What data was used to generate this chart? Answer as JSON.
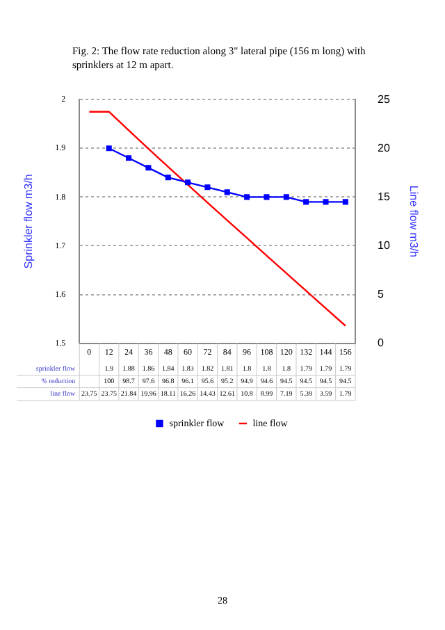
{
  "chart_data": {
    "type": "line",
    "title": "Fig. 2: The flow rate reduction along 3\" lateral pipe (156 m long) with sprinklers at 12 m apart.",
    "ylabel": "Sprinkler flow m3/h",
    "y2label": "Line flow m3/h",
    "categories": [
      "0",
      "12",
      "24",
      "36",
      "48",
      "60",
      "72",
      "84",
      "96",
      "108",
      "120",
      "132",
      "144",
      "156"
    ],
    "series": [
      {
        "name": "sprinkler flow",
        "color": "#0000ff",
        "marker": "square",
        "values": [
          null,
          1.9,
          1.88,
          1.86,
          1.84,
          1.83,
          1.82,
          1.81,
          1.8,
          1.8,
          1.8,
          1.79,
          1.79,
          1.79
        ]
      },
      {
        "name": "line flow",
        "color": "#ff0000",
        "marker": "none",
        "axis": "y2",
        "values": [
          23.75,
          23.75,
          21.84,
          19.96,
          18.11,
          16.26,
          14.43,
          12.61,
          10.8,
          8.99,
          7.19,
          5.39,
          3.59,
          1.79
        ]
      }
    ],
    "ylim": [
      1.5,
      2
    ],
    "yticks": [
      1.5,
      1.6,
      1.7,
      1.8,
      1.9,
      2
    ],
    "y2lim": [
      0,
      25
    ],
    "y2ticks": [
      0,
      5,
      10,
      15,
      20,
      25
    ],
    "grid": "y",
    "legend": "bottom",
    "data_labels": true,
    "annotations": [
      "% reduction",
      "100",
      "98.7",
      "97.6",
      "96.8",
      "96.1",
      "95.6",
      "95.2",
      "94.9",
      "94.6",
      "94.5",
      "94.5",
      "94.5",
      "94.5",
      "28"
    ]
  }
}
